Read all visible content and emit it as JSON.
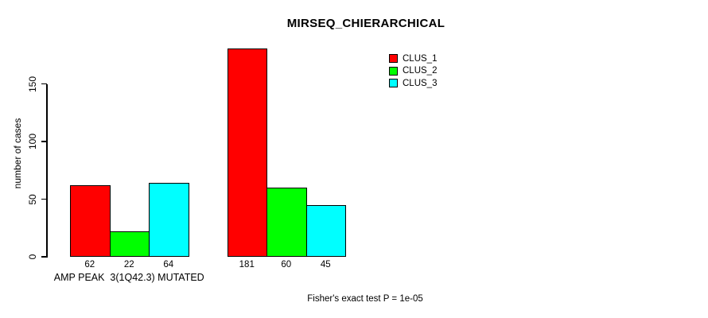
{
  "chart_data": {
    "type": "bar",
    "title": "MIRSEQ_CHIERARCHICAL",
    "ylabel": "number of cases",
    "xlabel": "",
    "annotation": "Fisher's exact test P = 1e-05",
    "legend_position": "top-right",
    "grid": false,
    "axis_color": "#000000",
    "background_color": "#ffffff",
    "ylim": [
      0,
      185
    ],
    "yticks": [
      0,
      50,
      100,
      150
    ],
    "series": [
      {
        "name": "CLUS_1",
        "color": "#ff0000"
      },
      {
        "name": "CLUS_2",
        "color": "#00ff00"
      },
      {
        "name": "CLUS_3",
        "color": "#00ffff"
      }
    ],
    "groups": [
      {
        "label": "AMP PEAK  3(1Q42.3) MUTATED",
        "values": [
          62,
          22,
          64
        ]
      },
      {
        "label": "",
        "values": [
          181,
          60,
          45
        ]
      }
    ]
  }
}
